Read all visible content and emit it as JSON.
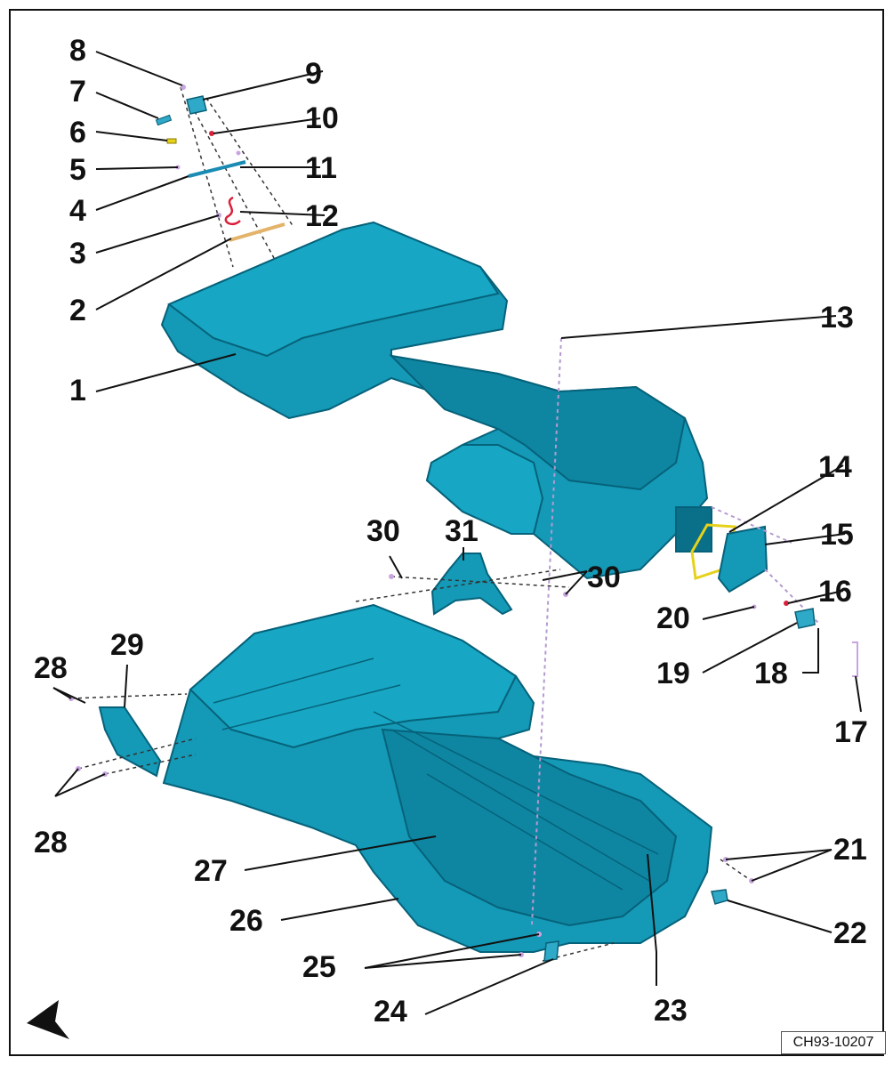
{
  "figure": {
    "code": "CH93-10207",
    "callouts": [
      {
        "id": "1",
        "label": "1"
      },
      {
        "id": "2",
        "label": "2"
      },
      {
        "id": "3",
        "label": "3"
      },
      {
        "id": "4",
        "label": "4"
      },
      {
        "id": "5",
        "label": "5"
      },
      {
        "id": "6",
        "label": "6"
      },
      {
        "id": "7",
        "label": "7"
      },
      {
        "id": "8",
        "label": "8"
      },
      {
        "id": "9",
        "label": "9"
      },
      {
        "id": "10",
        "label": "10"
      },
      {
        "id": "11",
        "label": "11"
      },
      {
        "id": "12",
        "label": "12"
      },
      {
        "id": "13",
        "label": "13"
      },
      {
        "id": "14",
        "label": "14"
      },
      {
        "id": "15",
        "label": "15"
      },
      {
        "id": "16",
        "label": "16"
      },
      {
        "id": "17",
        "label": "17"
      },
      {
        "id": "18",
        "label": "18"
      },
      {
        "id": "19",
        "label": "19"
      },
      {
        "id": "20",
        "label": "20"
      },
      {
        "id": "21",
        "label": "21"
      },
      {
        "id": "22",
        "label": "22"
      },
      {
        "id": "23",
        "label": "23"
      },
      {
        "id": "24",
        "label": "24"
      },
      {
        "id": "25",
        "label": "25"
      },
      {
        "id": "26",
        "label": "26"
      },
      {
        "id": "27",
        "label": "27"
      },
      {
        "id": "28a",
        "label": "28"
      },
      {
        "id": "28b",
        "label": "28"
      },
      {
        "id": "29",
        "label": "29"
      },
      {
        "id": "30a",
        "label": "30"
      },
      {
        "id": "30b",
        "label": "30"
      },
      {
        "id": "31",
        "label": "31"
      }
    ]
  },
  "colors": {
    "part": "#1499b6",
    "part_edge": "#06627a",
    "seal": "#e6d21a",
    "hose": "#d9203a",
    "fastener": "#c9a5e0"
  },
  "icons": {
    "orientation": "direction-arrow-icon"
  }
}
